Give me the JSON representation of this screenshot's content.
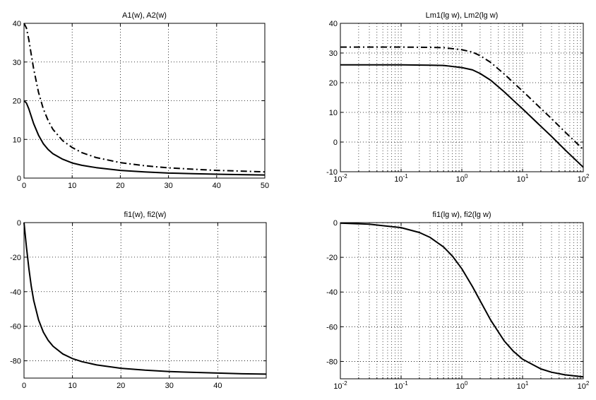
{
  "chart_data": [
    {
      "id": "top-left",
      "type": "line",
      "title": "A1(w), A2(w)",
      "xscale": "linear",
      "xlim": [
        0,
        50
      ],
      "ylim": [
        0,
        40
      ],
      "xticks": [
        0,
        10,
        20,
        30,
        40,
        50
      ],
      "yticks": [
        0,
        10,
        20,
        30,
        40
      ],
      "grid": true,
      "series": [
        {
          "style": "solid",
          "x": [
            0,
            0.5,
            1,
            1.5,
            2,
            3,
            4,
            5,
            6,
            8,
            10,
            12,
            15,
            20,
            25,
            30,
            35,
            40,
            45,
            50
          ],
          "y": [
            20,
            19.4,
            17.9,
            16.0,
            14.1,
            11.1,
            8.9,
            7.4,
            6.3,
            4.9,
            3.9,
            3.3,
            2.7,
            2.0,
            1.6,
            1.3,
            1.15,
            1.0,
            0.9,
            0.8
          ]
        },
        {
          "style": "dashdot",
          "x": [
            0,
            0.5,
            1,
            1.5,
            2,
            3,
            4,
            5,
            6,
            8,
            10,
            12,
            15,
            20,
            25,
            30,
            35,
            40,
            45,
            50
          ],
          "y": [
            40,
            38.8,
            35.8,
            32.0,
            28.3,
            22.2,
            17.9,
            14.9,
            12.6,
            9.7,
            7.9,
            6.6,
            5.3,
            4.0,
            3.2,
            2.65,
            2.3,
            2.0,
            1.8,
            1.6
          ]
        }
      ]
    },
    {
      "id": "top-right",
      "type": "line",
      "title": "Lm1(lg w), Lm2(lg w)",
      "xscale": "log",
      "xlim": [
        0.01,
        100
      ],
      "ylim": [
        -10,
        40
      ],
      "xticks": [
        0.01,
        0.1,
        1,
        10,
        100
      ],
      "xtick_labels": [
        [
          "10",
          "-2"
        ],
        [
          "10",
          "-1"
        ],
        [
          "10",
          "0"
        ],
        [
          "10",
          "1"
        ],
        [
          "10",
          "2"
        ]
      ],
      "yticks": [
        -10,
        0,
        10,
        20,
        30,
        40
      ],
      "grid": true,
      "series": [
        {
          "style": "solid",
          "x": [
            0.01,
            0.1,
            0.3,
            0.5,
            1,
            1.5,
            2,
            3,
            5,
            7,
            10,
            20,
            30,
            50,
            100
          ],
          "y": [
            26,
            26,
            25.9,
            25.8,
            25.1,
            24.3,
            23.1,
            20.8,
            16.9,
            14.1,
            11.2,
            5.3,
            1.9,
            -2.6,
            -8.5
          ]
        },
        {
          "style": "dashdot",
          "x": [
            0.01,
            0.1,
            0.3,
            0.5,
            1,
            1.5,
            2,
            3,
            5,
            7,
            10,
            20,
            30,
            50,
            100
          ],
          "y": [
            32,
            32,
            31.9,
            31.8,
            31.1,
            30.3,
            29.1,
            26.8,
            22.9,
            20.1,
            17.2,
            11.3,
            7.9,
            3.4,
            -2.5
          ]
        }
      ]
    },
    {
      "id": "bottom-left",
      "type": "line",
      "title": "fi1(w), fi2(w)",
      "xscale": "linear",
      "xlim": [
        0,
        50
      ],
      "ylim": [
        -90,
        0
      ],
      "xticks": [
        0,
        10,
        20,
        30,
        40
      ],
      "yticks": [
        -80,
        -60,
        -40,
        -20,
        0
      ],
      "grid": true,
      "series": [
        {
          "style": "solid",
          "x": [
            0,
            0.5,
            1,
            1.5,
            2,
            3,
            4,
            5,
            6,
            8,
            10,
            12,
            15,
            20,
            25,
            30,
            35,
            40,
            45,
            50
          ],
          "y": [
            0,
            -14,
            -26.6,
            -36.9,
            -45,
            -56.3,
            -63.4,
            -68.2,
            -71.6,
            -76.0,
            -78.7,
            -80.5,
            -82.4,
            -84.3,
            -85.4,
            -86.2,
            -86.7,
            -87.1,
            -87.5,
            -87.7
          ]
        }
      ]
    },
    {
      "id": "bottom-right",
      "type": "line",
      "title": "fi1(lg w), fi2(lg w)",
      "xscale": "log",
      "xlim": [
        0.01,
        100
      ],
      "ylim": [
        -90,
        0
      ],
      "xticks": [
        0.01,
        0.1,
        1,
        10,
        100
      ],
      "xtick_labels": [
        [
          "10",
          "-2"
        ],
        [
          "10",
          "-1"
        ],
        [
          "10",
          "0"
        ],
        [
          "10",
          "1"
        ],
        [
          "10",
          "2"
        ]
      ],
      "yticks": [
        -80,
        -60,
        -40,
        -20,
        0
      ],
      "grid": true,
      "series": [
        {
          "style": "solid",
          "x": [
            0.01,
            0.03,
            0.1,
            0.2,
            0.3,
            0.5,
            0.7,
            1,
            1.5,
            2,
            3,
            5,
            7,
            10,
            20,
            30,
            50,
            100
          ],
          "y": [
            -0.3,
            -0.9,
            -2.9,
            -5.7,
            -8.5,
            -14,
            -19.3,
            -26.6,
            -36.9,
            -45,
            -56.3,
            -68.2,
            -74,
            -78.7,
            -84.3,
            -86.2,
            -87.7,
            -88.9
          ]
        }
      ]
    }
  ]
}
